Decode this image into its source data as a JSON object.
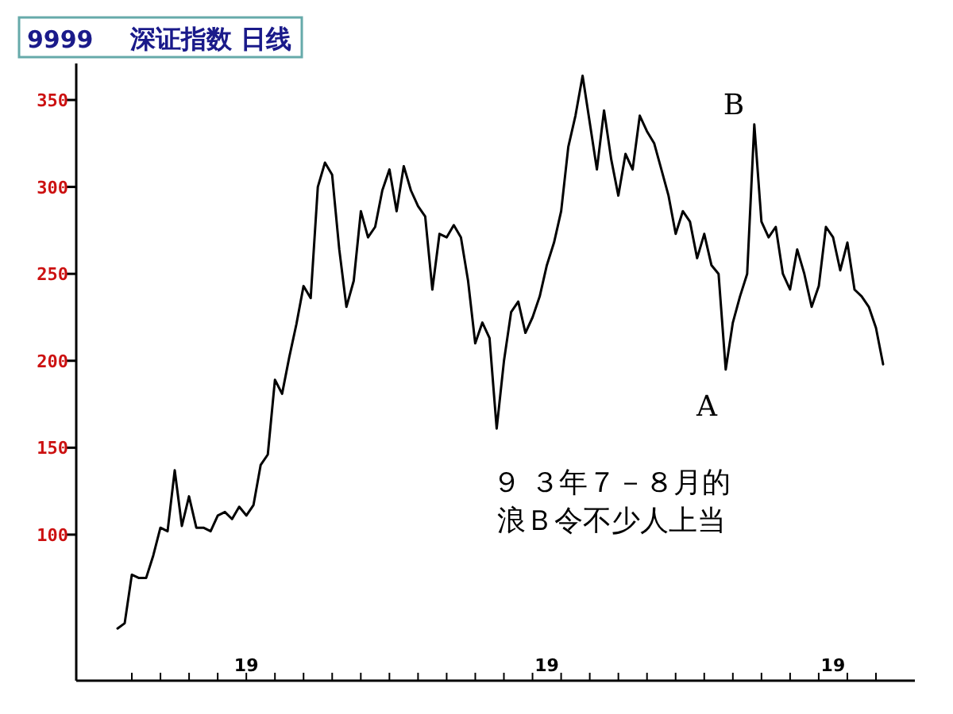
{
  "chart_data": {
    "type": "line",
    "title": "9999",
    "subtitle": "深证指数 日线",
    "annotations": [
      "A",
      "B",
      "９ ３年７－８月的",
      "浪Ｂ令不少人上当"
    ],
    "categories": [
      null,
      null,
      null,
      null,
      null,
      null,
      null,
      null,
      null,
      null,
      null,
      null,
      null,
      null,
      null,
      null,
      null,
      null,
      "19",
      null,
      null,
      null,
      null,
      null,
      null,
      null,
      null,
      null,
      null,
      null,
      null,
      null,
      null,
      null,
      null,
      null,
      null,
      null,
      null,
      null,
      null,
      null,
      null,
      null,
      null,
      null,
      null,
      null,
      null,
      null,
      null,
      null,
      null,
      null,
      null,
      null,
      null,
      null,
      null,
      null,
      "19",
      null,
      null,
      null,
      null,
      null,
      null,
      null,
      null,
      null,
      null,
      null,
      null,
      null,
      null,
      null,
      null,
      null,
      null,
      null,
      null,
      null,
      null,
      null,
      null,
      null,
      null,
      null,
      null,
      null,
      null,
      null,
      null,
      null,
      null,
      null,
      null,
      null,
      null,
      null,
      "19",
      null,
      null,
      null,
      null,
      null,
      null,
      null
    ],
    "values": [
      46,
      49,
      77,
      75,
      75,
      88,
      104,
      102,
      137,
      105,
      122,
      104,
      104,
      102,
      111,
      113,
      109,
      116,
      111,
      117,
      140,
      146,
      189,
      181,
      202,
      221,
      243,
      236,
      300,
      314,
      307,
      264,
      231,
      246,
      286,
      271,
      277,
      298,
      310,
      286,
      312,
      298,
      289,
      283,
      241,
      273,
      271,
      278,
      271,
      246,
      210,
      222,
      213,
      161,
      200,
      228,
      234,
      216,
      225,
      237,
      255,
      268,
      286,
      323,
      341,
      364,
      337,
      310,
      344,
      316,
      295,
      319,
      310,
      341,
      332,
      325,
      310,
      295,
      273,
      286,
      280,
      259,
      273,
      255,
      250,
      195,
      222,
      237,
      250,
      336,
      280,
      271,
      277,
      250,
      241,
      264,
      250,
      231,
      243,
      277,
      271,
      252,
      268,
      241,
      237,
      231,
      219,
      198
    ],
    "ylim": [
      16,
      371
    ],
    "yticks": [
      100,
      150,
      200,
      250,
      300,
      350
    ]
  }
}
